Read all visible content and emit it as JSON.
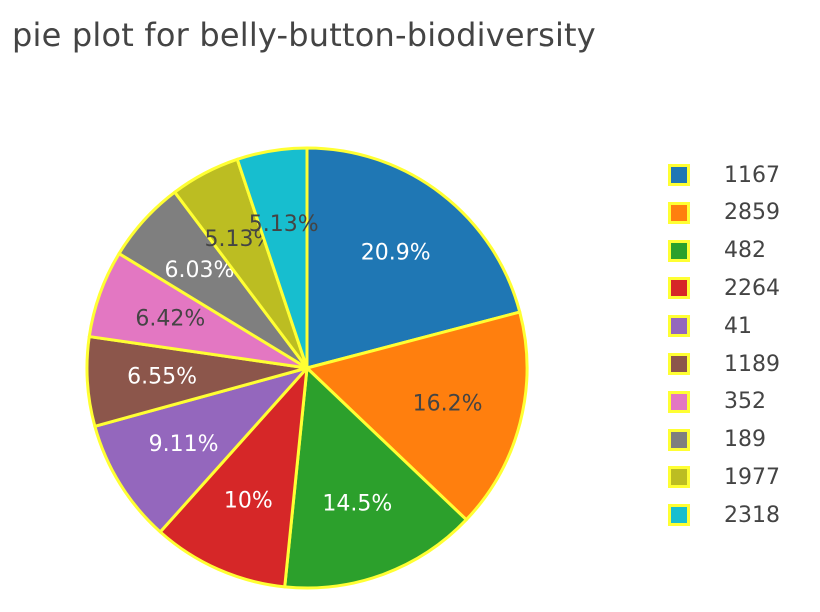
{
  "chart_data": {
    "type": "pie",
    "title": "pie plot for belly-button-biodiversity",
    "slice_border_color": "#ffff33",
    "legend_position": "right",
    "slices": [
      {
        "label": "1167",
        "value": 20.9,
        "text": "20.9%",
        "color": "#1f77b4",
        "text_color": "#ffffff"
      },
      {
        "label": "2859",
        "value": 16.2,
        "text": "16.2%",
        "color": "#ff7f0e",
        "text_color": "#444444"
      },
      {
        "label": "482",
        "value": 14.5,
        "text": "14.5%",
        "color": "#2ca02c",
        "text_color": "#ffffff"
      },
      {
        "label": "2264",
        "value": 10,
        "text": "10%",
        "color": "#d62728",
        "text_color": "#ffffff"
      },
      {
        "label": "41",
        "value": 9.11,
        "text": "9.11%",
        "color": "#9467bd",
        "text_color": "#ffffff"
      },
      {
        "label": "1189",
        "value": 6.55,
        "text": "6.55%",
        "color": "#8c564b",
        "text_color": "#ffffff"
      },
      {
        "label": "352",
        "value": 6.42,
        "text": "6.42%",
        "color": "#e377c2",
        "text_color": "#444444"
      },
      {
        "label": "189",
        "value": 6.03,
        "text": "6.03%",
        "color": "#7f7f7f",
        "text_color": "#ffffff"
      },
      {
        "label": "1977",
        "value": 5.13,
        "text": "5.13%",
        "color": "#bcbd22",
        "text_color": "#444444"
      },
      {
        "label": "2318",
        "value": 5.13,
        "text": "5.13%",
        "color": "#17becf",
        "text_color": "#444444"
      }
    ]
  }
}
